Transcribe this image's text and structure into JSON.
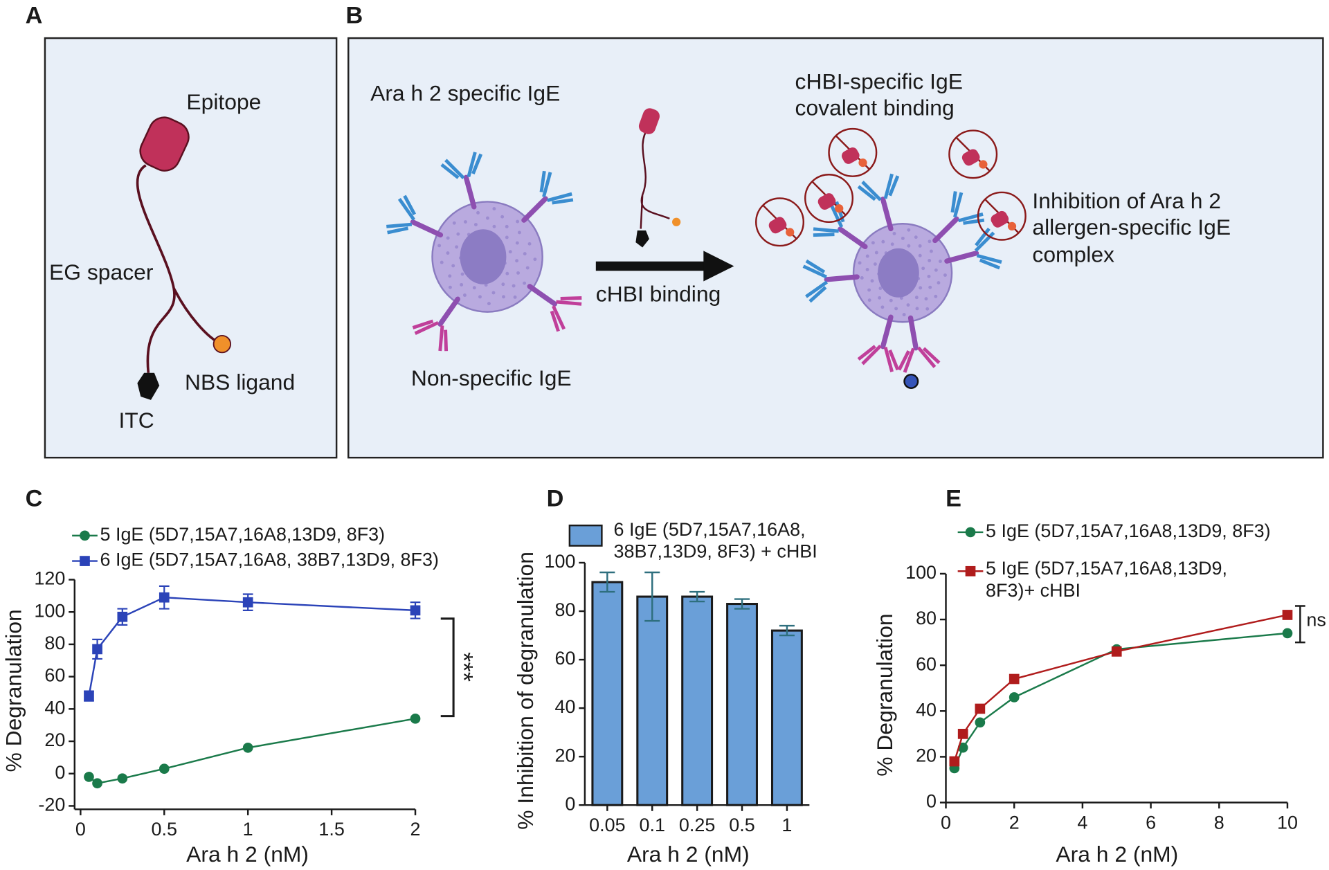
{
  "panel_labels": [
    "A",
    "B",
    "C",
    "D",
    "E"
  ],
  "diagram_a": {
    "labels": [
      "Epitope",
      "EG spacer",
      "NBS ligand",
      "ITC"
    ]
  },
  "diagram_b": {
    "labels": [
      "Ara h 2 specific IgE",
      "Non-specific IgE",
      "cHBI binding",
      "cHBI-specific IgE\ncovalent binding",
      "Inhibition of  Ara h 2\nallergen-specific IgE\ncomplex"
    ]
  },
  "chart_data": [
    {
      "type": "line",
      "xlabel": "Ara h 2 (nM)",
      "ylabel": "% Degranulation",
      "annotation": "***",
      "xlim": [
        0,
        2
      ],
      "xticks": [
        0,
        0.5,
        1,
        1.5,
        2
      ],
      "ylim": [
        -20,
        120
      ],
      "yticks": [
        -20,
        0,
        20,
        40,
        60,
        80,
        100,
        120
      ],
      "x": [
        0.05,
        0.1,
        0.25,
        0.5,
        1,
        2
      ],
      "series": [
        {
          "name": "5 IgE (5D7,15A7,16A8,13D9, 8F3)",
          "color": "#1a7a4a",
          "marker": "circle",
          "values": [
            -2,
            -6,
            -3,
            3,
            16,
            34
          ]
        },
        {
          "name": "6 IgE (5D7,15A7,16A8, 38B7,13D9, 8F3)",
          "color": "#2b43b8",
          "marker": "square",
          "values": [
            48,
            77,
            97,
            109,
            106,
            101
          ],
          "errors": [
            3,
            6,
            5,
            7,
            5,
            5
          ]
        }
      ]
    },
    {
      "type": "bar",
      "xlabel": "Ara h 2 (nM)",
      "ylabel": "% Inhibition of degranulation",
      "categories": [
        "0.05",
        "0.1",
        "0.25",
        "0.5",
        "1"
      ],
      "ylim": [
        0,
        100
      ],
      "yticks": [
        0,
        20,
        40,
        60,
        80,
        100
      ],
      "series": [
        {
          "name": "6 IgE (5D7,15A7,16A8,\n38B7,13D9, 8F3) + cHBI",
          "color": "#6a9fd8",
          "values": [
            92,
            86,
            86,
            83,
            72
          ],
          "errors": [
            4,
            10,
            2,
            2,
            2
          ]
        }
      ]
    },
    {
      "type": "line",
      "xlabel": "Ara h 2 (nM)",
      "ylabel": "% Degranulation",
      "annotation": "ns",
      "xlim": [
        0,
        10
      ],
      "xticks": [
        0,
        2,
        4,
        6,
        8,
        10
      ],
      "ylim": [
        0,
        100
      ],
      "yticks": [
        0,
        20,
        40,
        60,
        80,
        100
      ],
      "x": [
        0.25,
        0.5,
        1,
        2,
        5,
        10
      ],
      "series": [
        {
          "name": "5 IgE (5D7,15A7,16A8,13D9, 8F3)",
          "color": "#1a7a4a",
          "marker": "circle",
          "values": [
            15,
            24,
            35,
            46,
            67,
            74
          ]
        },
        {
          "name": "5 IgE (5D7,15A7,16A8,13D9,\n8F3)+ cHBI",
          "color": "#b01c1c",
          "marker": "square",
          "values": [
            18,
            30,
            41,
            54,
            66,
            82
          ]
        }
      ]
    }
  ]
}
